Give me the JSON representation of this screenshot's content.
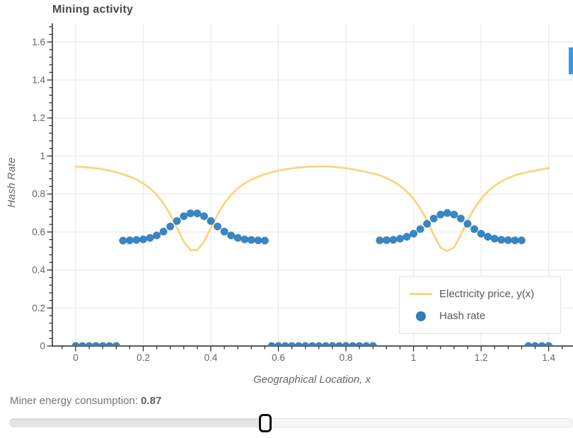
{
  "chart_data": {
    "type": "line",
    "title": "Mining activity",
    "xlabel": "Geographical Location, x",
    "ylabel": "Hash Rate",
    "xlim": [
      -0.069,
      1.472
    ],
    "ylim": [
      0,
      1.698
    ],
    "grid": true,
    "legend_position": "lower right",
    "xticks": [
      0,
      0.2,
      0.4,
      0.6,
      0.8,
      1,
      1.2,
      1.4
    ],
    "xtick_labels": [
      "0",
      "0.2",
      "0.4",
      "0.6",
      "0.8",
      "1",
      "1.2",
      "1.4"
    ],
    "yticks": [
      0,
      0.2,
      0.4,
      0.6,
      0.8,
      1,
      1.2,
      1.4,
      1.6
    ],
    "ytick_labels": [
      "0",
      "0.2",
      "0.4",
      "0.6",
      "0.8",
      "1",
      "1.2",
      "1.4",
      "1.6"
    ],
    "minor_tick_step": 0.04,
    "x": [
      0,
      0.02,
      0.04,
      0.06,
      0.08,
      0.1,
      0.12,
      0.14,
      0.16,
      0.18,
      0.2,
      0.22,
      0.24,
      0.26,
      0.28,
      0.3,
      0.32,
      0.34,
      0.36,
      0.38,
      0.4,
      0.42,
      0.44,
      0.46,
      0.48,
      0.5,
      0.52,
      0.54,
      0.56,
      0.58,
      0.6,
      0.62,
      0.64,
      0.66,
      0.68,
      0.7,
      0.72,
      0.74,
      0.76,
      0.78,
      0.8,
      0.82,
      0.84,
      0.86,
      0.88,
      0.9,
      0.92,
      0.94,
      0.96,
      0.98,
      1,
      1.02,
      1.04,
      1.06,
      1.08,
      1.1,
      1.12,
      1.14,
      1.16,
      1.18,
      1.2,
      1.22,
      1.24,
      1.26,
      1.28,
      1.3,
      1.32,
      1.34,
      1.36,
      1.38,
      1.4
    ],
    "series": [
      {
        "name": "Electricity price, y(x)",
        "type": "line",
        "color": "#fad57e",
        "values": [
          0.944,
          0.942,
          0.939,
          0.935,
          0.93,
          0.923,
          0.914,
          0.904,
          0.891,
          0.876,
          0.856,
          0.83,
          0.796,
          0.75,
          0.692,
          0.622,
          0.548,
          0.505,
          0.505,
          0.548,
          0.622,
          0.692,
          0.75,
          0.796,
          0.83,
          0.856,
          0.876,
          0.891,
          0.904,
          0.914,
          0.923,
          0.93,
          0.935,
          0.939,
          0.942,
          0.944,
          0.945,
          0.945,
          0.943,
          0.94,
          0.936,
          0.93,
          0.923,
          0.916,
          0.908,
          0.898,
          0.884,
          0.866,
          0.843,
          0.813,
          0.774,
          0.724,
          0.66,
          0.585,
          0.518,
          0.5,
          0.518,
          0.585,
          0.66,
          0.724,
          0.774,
          0.813,
          0.843,
          0.866,
          0.884,
          0.898,
          0.908,
          0.916,
          0.923,
          0.93,
          0.936
        ]
      },
      {
        "name": "Hash rate",
        "type": "scatter",
        "color": "#2e7fbf",
        "values": [
          0,
          0,
          0,
          0,
          0,
          0,
          0,
          0.555,
          0.556,
          0.558,
          0.561,
          0.569,
          0.582,
          0.602,
          0.629,
          0.658,
          0.683,
          0.698,
          0.698,
          0.683,
          0.658,
          0.629,
          0.602,
          0.582,
          0.569,
          0.561,
          0.558,
          0.556,
          0.555,
          0,
          0,
          0,
          0,
          0,
          0,
          0,
          0,
          0,
          0,
          0,
          0,
          0,
          0,
          0,
          0,
          0.556,
          0.557,
          0.559,
          0.565,
          0.575,
          0.591,
          0.615,
          0.643,
          0.671,
          0.692,
          0.7,
          0.692,
          0.671,
          0.643,
          0.615,
          0.591,
          0.575,
          0.565,
          0.559,
          0.557,
          0.556,
          0.556,
          0,
          0,
          0,
          0
        ]
      }
    ],
    "legend": [
      {
        "label": "Electricity price, y(x)",
        "marker": "line",
        "color": "#fad57e"
      },
      {
        "label": "Hash rate",
        "marker": "dot",
        "color": "#2e7fbf"
      }
    ]
  },
  "slider": {
    "label": "Miner energy consumption: ",
    "value": "0.87"
  },
  "colors": {
    "grid": "#ebebeb",
    "spine": "#262626",
    "tick_label": "#666666",
    "title": "#4a4a4a",
    "scrollbar": "#2e9be5"
  }
}
